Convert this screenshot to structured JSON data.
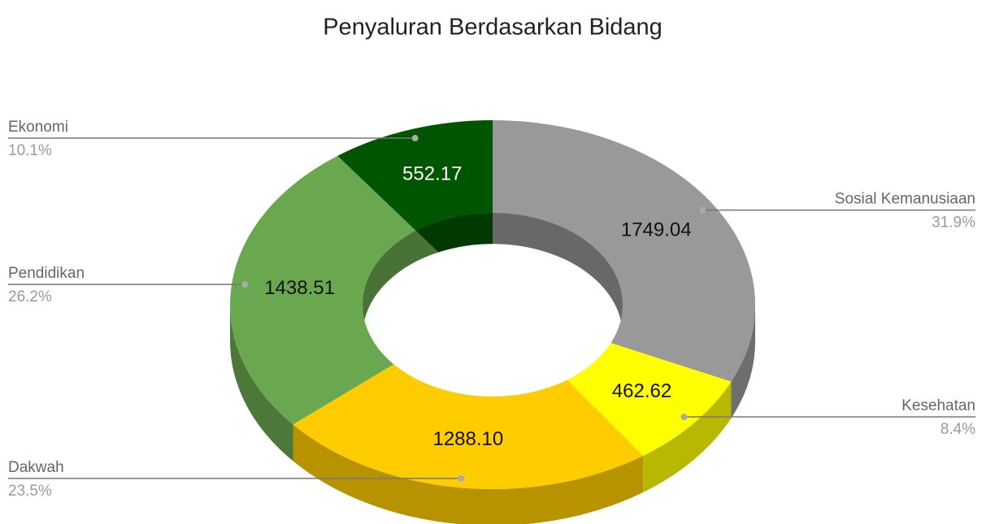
{
  "chart_data": {
    "type": "pie",
    "donut": true,
    "three_d": true,
    "title": "Penyaluran Berdasarkan Bidang",
    "categories": [
      "Sosial Kemanusiaan",
      "Kesehatan",
      "Dakwah",
      "Pendidikan",
      "Ekonomi"
    ],
    "values": [
      1749.04,
      462.62,
      1288.1,
      1438.51,
      552.17
    ],
    "value_labels": [
      "1749.04",
      "462.62",
      "1288.10",
      "1438.51",
      "552.17"
    ],
    "percent_labels": [
      "31.9%",
      "8.4%",
      "23.5%",
      "26.2%",
      "10.1%"
    ],
    "colors": [
      "#999999",
      "#ffff00",
      "#ffcc00",
      "#6aa84f",
      "#005500"
    ]
  }
}
